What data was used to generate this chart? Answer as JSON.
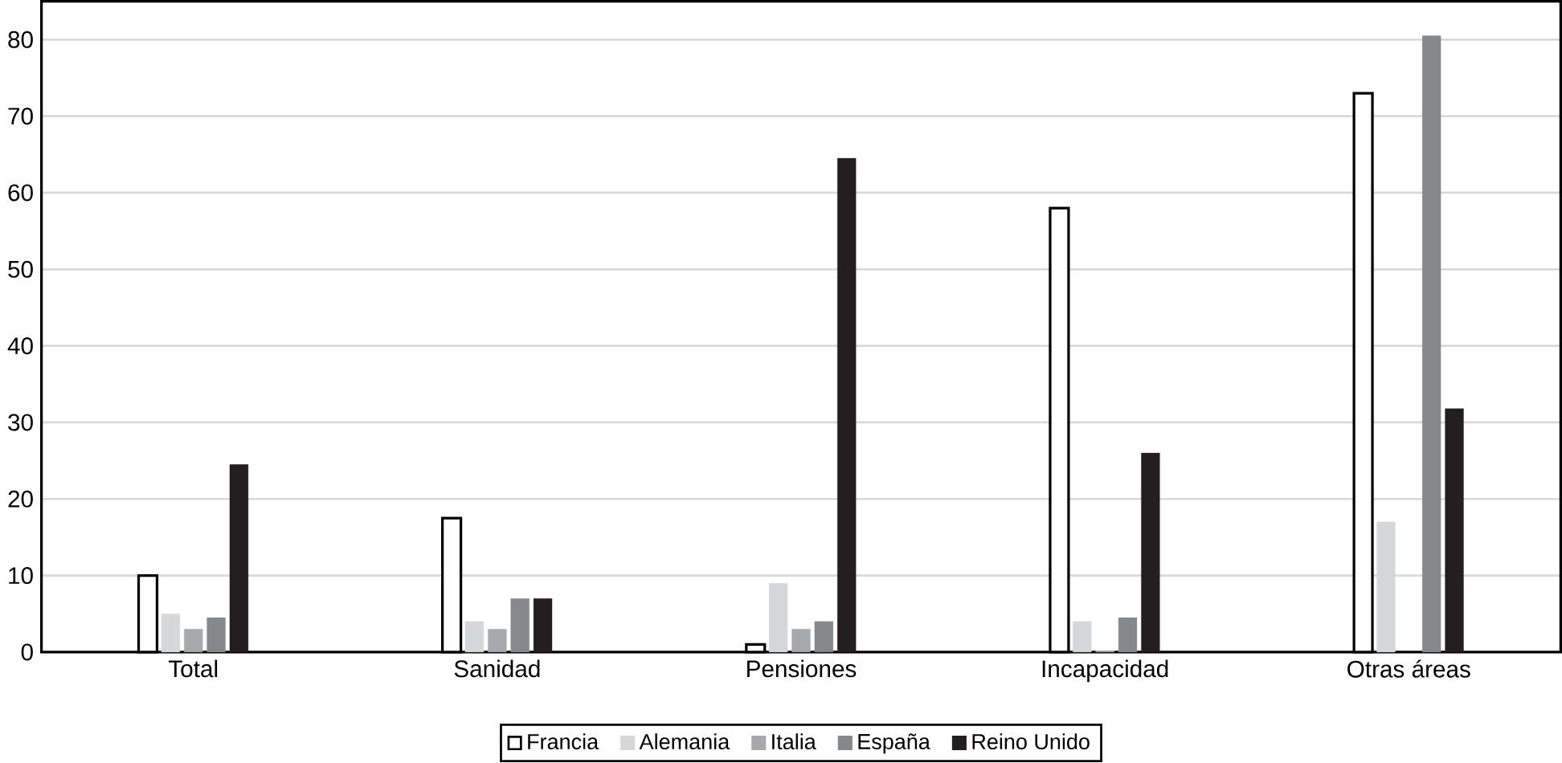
{
  "chart_data": {
    "type": "bar",
    "categories": [
      "Total",
      "Sanidad",
      "Pensiones",
      "Incapacidad",
      "Otras áreas"
    ],
    "series": [
      {
        "name": "Francia",
        "color": "#ffffff",
        "values": [
          10,
          17.5,
          1,
          58,
          73
        ]
      },
      {
        "name": "Alemania",
        "color": "#d6d7d9",
        "values": [
          5,
          4,
          9,
          4,
          17
        ]
      },
      {
        "name": "Italia",
        "color": "#a7a8ab",
        "values": [
          3,
          3,
          3,
          0.2,
          null
        ]
      },
      {
        "name": "España",
        "color": "#87888b",
        "values": [
          4.5,
          7,
          4,
          4.5,
          80.5
        ]
      },
      {
        "name": "Reino Unido",
        "color": "#231f20",
        "values": [
          24.5,
          7,
          64.5,
          26,
          31.8
        ]
      }
    ],
    "ylim": [
      0,
      85
    ],
    "yticks": [
      0,
      10,
      20,
      30,
      40,
      50,
      60,
      70,
      80
    ],
    "grid": "y",
    "legend": "bottom"
  }
}
